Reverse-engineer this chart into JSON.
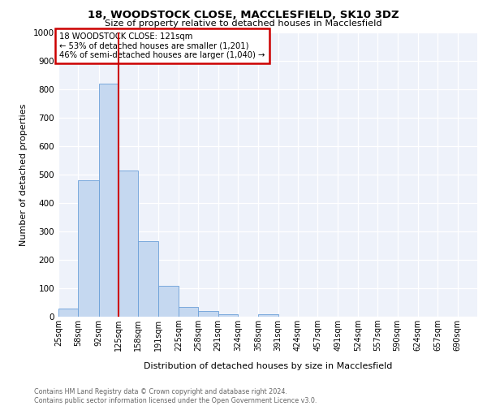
{
  "title_line1": "18, WOODSTOCK CLOSE, MACCLESFIELD, SK10 3DZ",
  "title_line2": "Size of property relative to detached houses in Macclesfield",
  "xlabel": "Distribution of detached houses by size in Macclesfield",
  "ylabel": "Number of detached properties",
  "bin_edges": [
    25,
    58,
    92,
    125,
    158,
    191,
    225,
    258,
    291,
    324,
    358,
    391,
    424,
    457,
    491,
    524,
    557,
    590,
    624,
    657,
    690,
    723
  ],
  "bin_labels": [
    "25sqm",
    "58sqm",
    "92sqm",
    "125sqm",
    "158sqm",
    "191sqm",
    "225sqm",
    "258sqm",
    "291sqm",
    "324sqm",
    "358sqm",
    "391sqm",
    "424sqm",
    "457sqm",
    "491sqm",
    "524sqm",
    "557sqm",
    "590sqm",
    "624sqm",
    "657sqm",
    "690sqm"
  ],
  "bar_heights": [
    30,
    480,
    820,
    515,
    265,
    110,
    35,
    20,
    10,
    0,
    8,
    0,
    0,
    0,
    0,
    0,
    0,
    0,
    0,
    0,
    0
  ],
  "bar_color": "#c5d8f0",
  "bar_edgecolor": "#6a9fd8",
  "vline_x": 125,
  "vline_color": "#cc0000",
  "annotation_text": "18 WOODSTOCK CLOSE: 121sqm\n← 53% of detached houses are smaller (1,201)\n46% of semi-detached houses are larger (1,040) →",
  "annotation_box_color": "#ffffff",
  "annotation_box_edgecolor": "#cc0000",
  "ylim": [
    0,
    1000
  ],
  "yticks": [
    0,
    100,
    200,
    300,
    400,
    500,
    600,
    700,
    800,
    900,
    1000
  ],
  "footnote": "Contains HM Land Registry data © Crown copyright and database right 2024.\nContains public sector information licensed under the Open Government Licence v3.0.",
  "bg_color": "#eef2fa",
  "grid_color": "#ffffff"
}
